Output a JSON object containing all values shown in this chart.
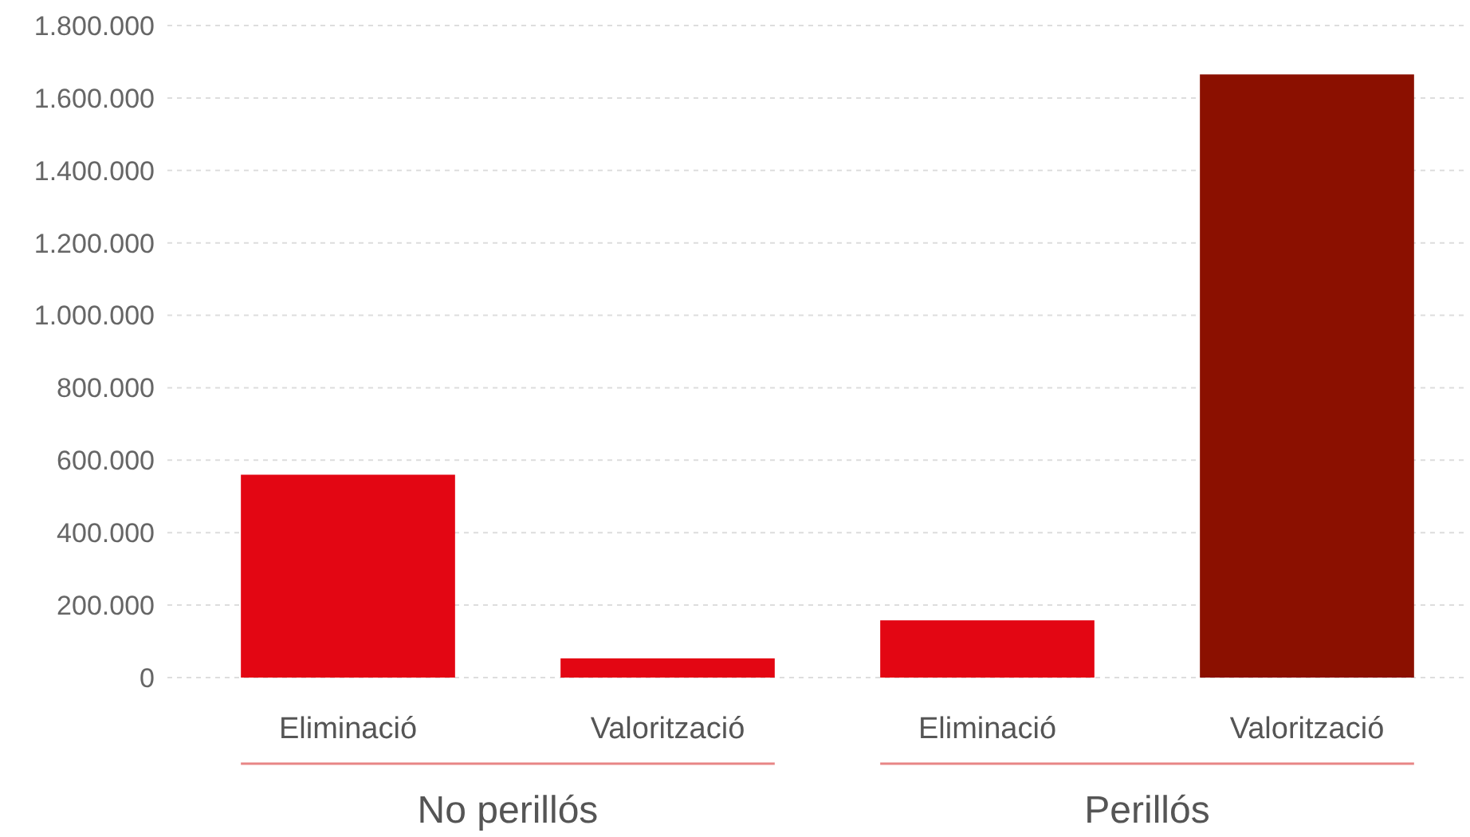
{
  "chart_data": {
    "type": "bar",
    "categories": [
      "Eliminació",
      "Valorització",
      "Eliminació",
      "Valorització"
    ],
    "values": [
      560000,
      53000,
      158000,
      1665000
    ],
    "colors": [
      "#e30613",
      "#e30613",
      "#e30613",
      "#8b1000"
    ],
    "ylim": [
      0,
      1800000
    ],
    "yticks": [
      0,
      {
        "value": 200000,
        "label": "200.000"
      },
      {
        "value": 400000,
        "label": "400.000"
      },
      {
        "value": 600000,
        "label": "600.000"
      },
      {
        "value": 800000,
        "label": "800.000"
      },
      {
        "value": 1000000,
        "label": "1.000.000"
      },
      {
        "value": 1200000,
        "label": "1.200.000"
      },
      {
        "value": 1400000,
        "label": "1.400.000"
      },
      {
        "value": 1600000,
        "label": "1.600.000"
      },
      {
        "value": 1800000,
        "label": "1.800.000"
      }
    ],
    "grid": "y",
    "annotations": [
      "No perillós",
      "Perillós"
    ]
  }
}
